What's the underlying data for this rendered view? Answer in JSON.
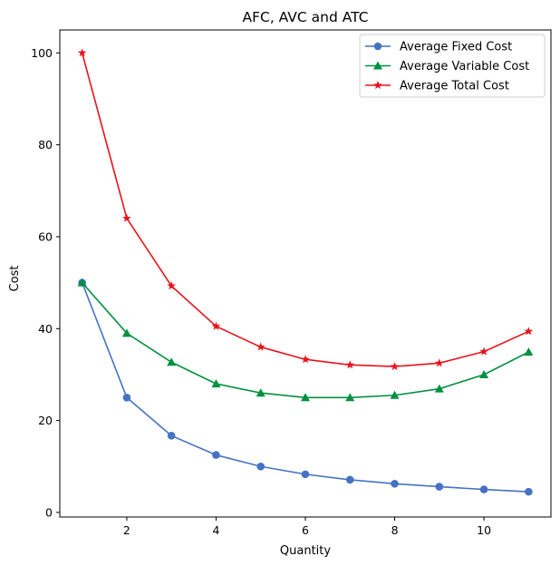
{
  "chart_data": {
    "type": "line",
    "title": "AFC, AVC and ATC",
    "xlabel": "Quantity",
    "ylabel": "Cost",
    "x": [
      1,
      2,
      3,
      4,
      5,
      6,
      7,
      8,
      9,
      10,
      11
    ],
    "xlim": [
      0.5,
      11.5
    ],
    "ylim": [
      -1,
      105
    ],
    "xticks": [
      2,
      4,
      6,
      8,
      10
    ],
    "yticks": [
      0,
      20,
      40,
      60,
      80,
      100
    ],
    "grid": false,
    "legend_position": "top-right",
    "series": [
      {
        "name": "Average Fixed Cost",
        "color": "#4472c4",
        "marker": "circle",
        "values": [
          50,
          25,
          16.7,
          12.5,
          10,
          8.3,
          7.1,
          6.25,
          5.6,
          5,
          4.5
        ]
      },
      {
        "name": "Average Variable Cost",
        "color": "#00913f",
        "marker": "triangle",
        "values": [
          50,
          39,
          32.7,
          28,
          26,
          25,
          25,
          25.5,
          26.9,
          30,
          34.9
        ]
      },
      {
        "name": "Average Total Cost",
        "color": "#e8141b",
        "marker": "star",
        "values": [
          100,
          64,
          49.3,
          40.5,
          36,
          33.3,
          32.1,
          31.75,
          32.5,
          35,
          39.4
        ]
      }
    ]
  }
}
